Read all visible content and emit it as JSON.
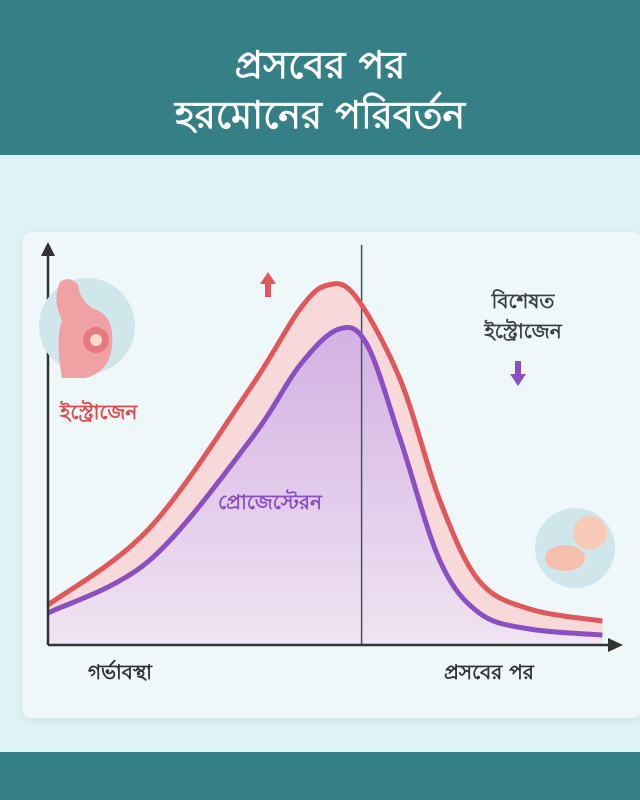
{
  "header": {
    "title_line1": "প্রসবের পর",
    "title_line2": "হরমোনের পরিবর্তন"
  },
  "colors": {
    "header": "#357f86",
    "estrogen": "#e0585c",
    "progesterone": "#8a4fc0",
    "divider": "#2f5f66"
  },
  "icons": [
    "pregnant-woman-icon",
    "newborn-baby-icon",
    "arrow-up-icon",
    "arrow-down-icon"
  ],
  "chart_data": {
    "type": "line",
    "title": "",
    "xlabel_left": "গর্ভাবস্থা",
    "xlabel_right": "প্রসবের পর",
    "ylabel": "",
    "grid": false,
    "annotation": "বিশেষত ইস্ট্রোজেন",
    "series": [
      {
        "name": "ইস্ট্রোজেন",
        "color": "#e0585c",
        "x": [
          0,
          18,
          36,
          45,
          50,
          55,
          63,
          70,
          77,
          86,
          99
        ],
        "values": [
          10,
          29,
          64,
          84,
          90,
          87,
          66,
          36,
          16,
          9,
          6
        ]
      },
      {
        "name": "প্রোজেস্টেরন",
        "color": "#8a4fc0",
        "x": [
          0,
          18,
          36,
          45,
          52,
          57,
          63,
          70,
          77,
          86,
          99
        ],
        "values": [
          8,
          21,
          51,
          70,
          79,
          75,
          51,
          21,
          8,
          4,
          2.5
        ]
      }
    ],
    "divider_x": 56
  }
}
